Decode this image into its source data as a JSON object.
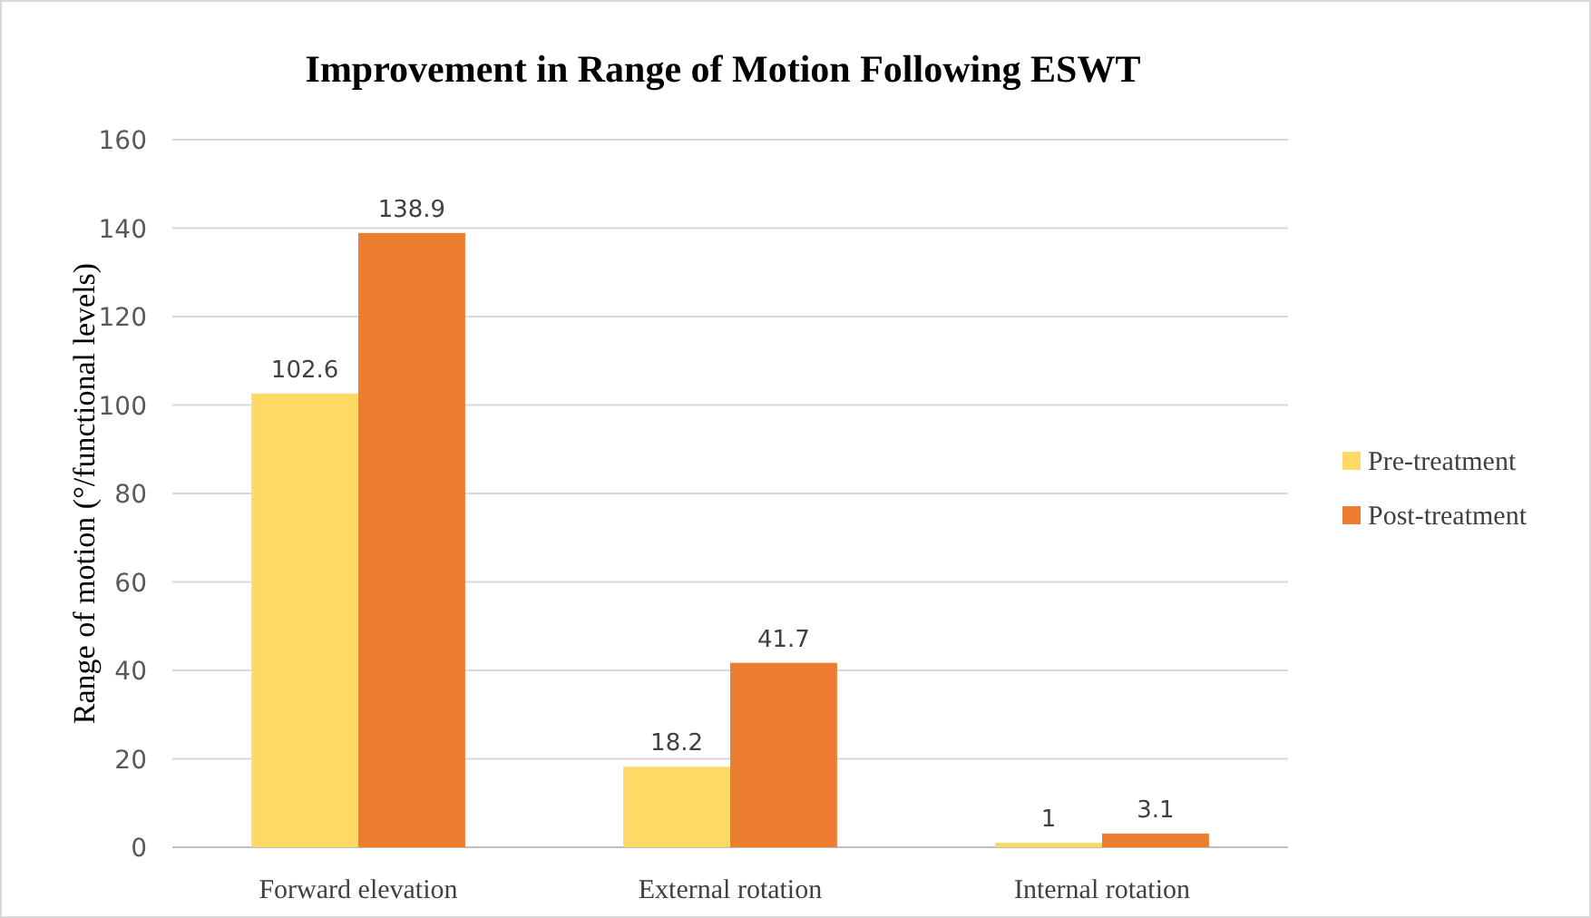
{
  "chart_data": {
    "type": "bar",
    "title": "Improvement in Range of Motion Following ESWT",
    "ylabel": "Range of motion (°/functional levels)",
    "categories": [
      "Forward elevation",
      "External rotation",
      "Internal rotation"
    ],
    "series": [
      {
        "name": "Pre-treatment",
        "color": "#ffd966",
        "values": [
          102.6,
          18.2,
          1
        ]
      },
      {
        "name": "Post-treatment",
        "color": "#ed7d31",
        "values": [
          138.9,
          41.7,
          3.1
        ]
      }
    ],
    "ylim": [
      0,
      160
    ],
    "yticks": [
      0,
      20,
      40,
      60,
      80,
      100,
      120,
      140,
      160
    ],
    "grid": "y",
    "legend": "right",
    "data_labels": true
  }
}
